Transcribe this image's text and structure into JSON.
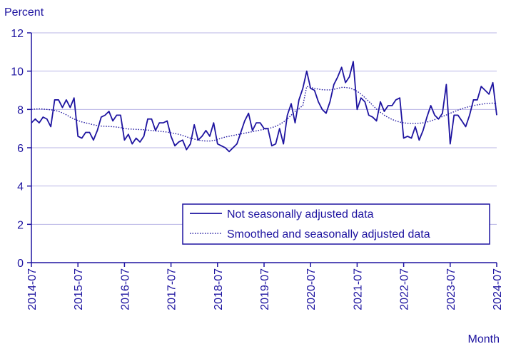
{
  "chart_data": {
    "type": "line",
    "title": "",
    "ylabel": "Percent",
    "xlabel": "Month",
    "ylim": [
      0,
      12
    ],
    "yticks": [
      0,
      2,
      4,
      6,
      8,
      10,
      12
    ],
    "grid": "horizontal",
    "legend_position": "bottom-right",
    "x_tick_labels": [
      "2014-07",
      "2015-07",
      "2016-07",
      "2017-07",
      "2018-07",
      "2019-07",
      "2020-07",
      "2021-07",
      "2022-07",
      "2023-07",
      "2024-07"
    ],
    "x_start": "2014-07",
    "series": [
      {
        "name": "Not seasonally adjusted data",
        "style": "solid",
        "color": "#1e14a0",
        "values": [
          7.3,
          7.5,
          7.3,
          7.6,
          7.5,
          7.1,
          8.5,
          8.5,
          8.1,
          8.5,
          8.1,
          8.6,
          6.6,
          6.5,
          6.8,
          6.8,
          6.4,
          6.9,
          7.6,
          7.7,
          7.9,
          7.4,
          7.7,
          7.7,
          6.4,
          6.7,
          6.2,
          6.5,
          6.3,
          6.6,
          7.5,
          7.5,
          6.9,
          7.3,
          7.3,
          7.4,
          6.6,
          6.1,
          6.3,
          6.4,
          5.9,
          6.2,
          7.2,
          6.4,
          6.6,
          6.9,
          6.6,
          7.3,
          6.2,
          6.1,
          6.0,
          5.8,
          6.0,
          6.2,
          6.8,
          7.4,
          7.8,
          6.9,
          7.3,
          7.3,
          7.0,
          7.0,
          6.1,
          6.2,
          7.0,
          6.2,
          7.7,
          8.3,
          7.3,
          8.5,
          9.1,
          10.0,
          9.1,
          9.0,
          8.4,
          8.0,
          7.8,
          8.4,
          9.3,
          9.7,
          10.2,
          9.4,
          9.7,
          10.5,
          8.0,
          8.6,
          8.4,
          7.7,
          7.6,
          7.4,
          8.4,
          7.9,
          8.2,
          8.2,
          8.5,
          8.6,
          6.5,
          6.6,
          6.5,
          7.1,
          6.4,
          6.9,
          7.6,
          8.2,
          7.7,
          7.5,
          7.8,
          9.3,
          6.2,
          7.7,
          7.7,
          7.4,
          7.1,
          7.7,
          8.5,
          8.5,
          9.2,
          9.0,
          8.8,
          9.4,
          7.7
        ]
      },
      {
        "name": "Smoothed and seasonally adjusted data",
        "style": "dotted",
        "color": "#1e14a0",
        "values": [
          8.0,
          8.02,
          8.03,
          8.02,
          8.0,
          7.98,
          7.95,
          7.9,
          7.82,
          7.72,
          7.6,
          7.5,
          7.42,
          7.35,
          7.3,
          7.25,
          7.2,
          7.16,
          7.13,
          7.12,
          7.11,
          7.1,
          7.08,
          7.05,
          7.0,
          6.98,
          6.97,
          6.96,
          6.95,
          6.94,
          6.92,
          6.9,
          6.88,
          6.86,
          6.84,
          6.82,
          6.78,
          6.74,
          6.7,
          6.64,
          6.57,
          6.5,
          6.45,
          6.4,
          6.37,
          6.35,
          6.35,
          6.38,
          6.43,
          6.5,
          6.56,
          6.6,
          6.64,
          6.68,
          6.72,
          6.76,
          6.8,
          6.84,
          6.88,
          6.92,
          6.96,
          7.0,
          7.05,
          7.12,
          7.22,
          7.34,
          7.5,
          7.7,
          7.9,
          8.05,
          8.2,
          9.2,
          9.15,
          9.1,
          9.06,
          9.03,
          9.02,
          9.02,
          9.05,
          9.1,
          9.15,
          9.15,
          9.12,
          9.05,
          8.95,
          8.8,
          8.62,
          8.42,
          8.22,
          8.02,
          7.85,
          7.7,
          7.58,
          7.48,
          7.4,
          7.34,
          7.3,
          7.28,
          7.27,
          7.27,
          7.28,
          7.3,
          7.34,
          7.4,
          7.47,
          7.55,
          7.63,
          7.71,
          7.8,
          7.88,
          7.96,
          8.04,
          8.1,
          8.15,
          8.2,
          8.24,
          8.27,
          8.3,
          8.32,
          8.33,
          8.3
        ]
      }
    ]
  }
}
